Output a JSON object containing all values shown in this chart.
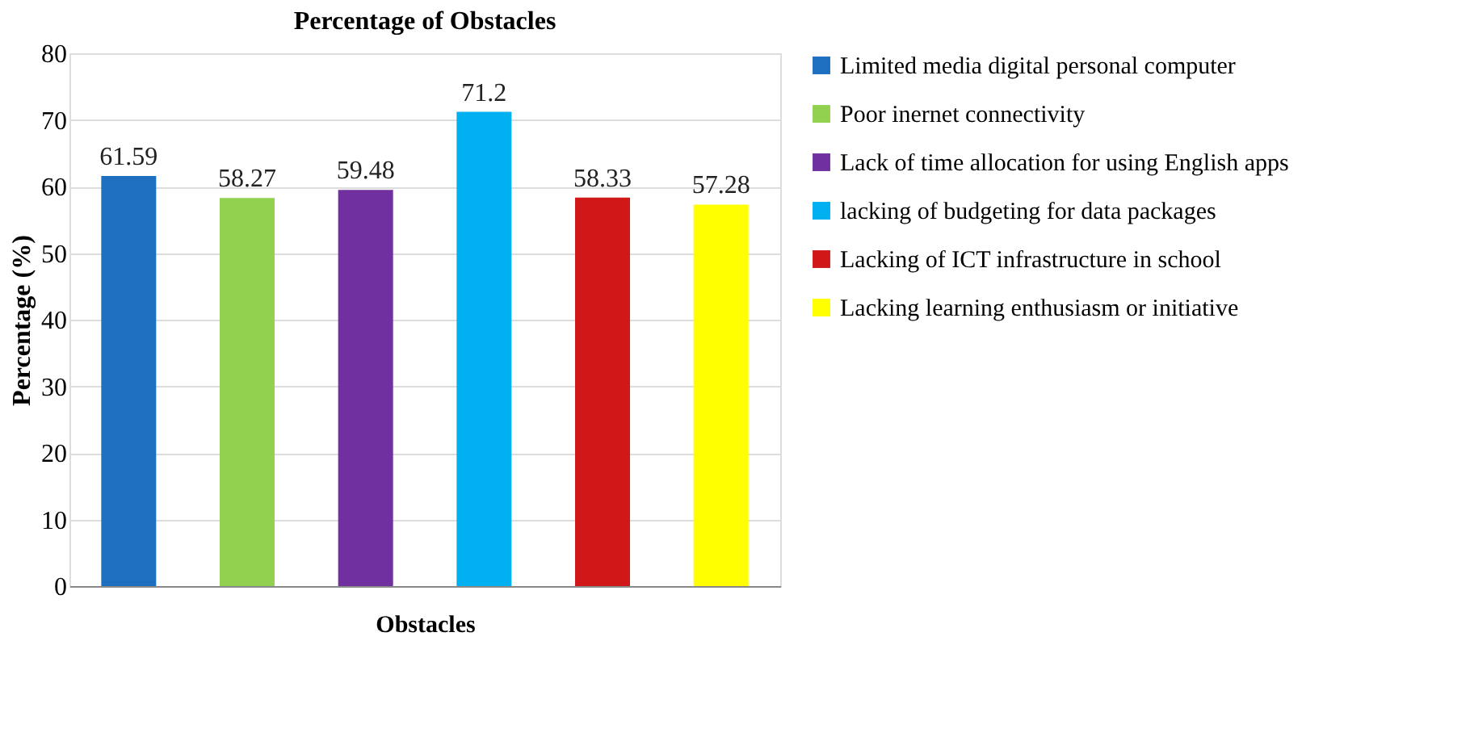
{
  "chart_data": {
    "type": "bar",
    "title": "Percentage of Obstacles",
    "xlabel": "Obstacles",
    "ylabel": "Percentage (%)",
    "categories": [
      null,
      null,
      null,
      null,
      null,
      null
    ],
    "series": [
      {
        "name": "Limited media digital personal computer",
        "color": "#1f6fc0",
        "values": [
          61.59,
          null,
          null,
          null,
          null,
          null
        ]
      },
      {
        "name": "Poor inernet connectivity",
        "color": "#92d050",
        "values": [
          null,
          58.27,
          null,
          null,
          null,
          null
        ]
      },
      {
        "name": "Lack of time allocation for using English apps",
        "color": "#7030a0",
        "values": [
          null,
          null,
          59.48,
          null,
          null,
          null
        ]
      },
      {
        "name": "lacking of budgeting for data packages",
        "color": "#00b0f0",
        "values": [
          null,
          null,
          null,
          71.2,
          null,
          null
        ]
      },
      {
        "name": "Lacking of ICT infrastructure in school",
        "color": "#d01818",
        "values": [
          null,
          null,
          null,
          null,
          58.33,
          null
        ]
      },
      {
        "name": "Lacking learning enthusiasm or initiative",
        "color": "#ffff00",
        "values": [
          null,
          null,
          null,
          null,
          null,
          57.28
        ]
      }
    ],
    "ylim": [
      0,
      80
    ],
    "yticks": [
      0,
      10,
      20,
      30,
      40,
      50,
      60,
      70,
      80
    ],
    "grid": "y",
    "legend": "right",
    "data_labels": true
  }
}
